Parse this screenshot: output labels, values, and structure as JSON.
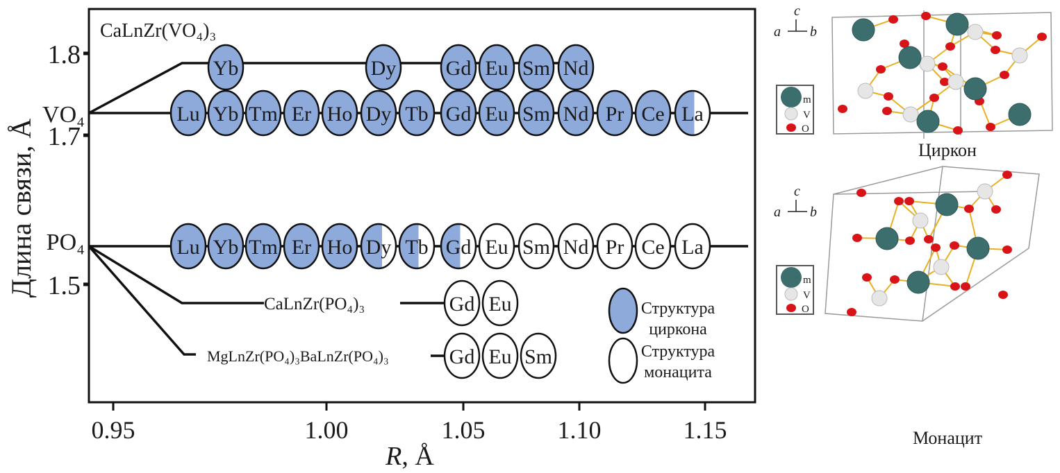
{
  "figure": {
    "y_axis_label": "Длина связи, Å",
    "x_axis_label_var": "R",
    "x_axis_label_unit": ", Å",
    "x_ticks": [
      "0.95",
      "1.00",
      "1.05",
      "1.10",
      "1.15"
    ],
    "y_ticks": [
      "1.8",
      "1.7",
      "1.5"
    ],
    "group_labels": {
      "vo4": "VO₄",
      "po4": "PO₄"
    },
    "compound_labels": {
      "ca_vanadate": "CaLnZr(VO₄)₃",
      "ca_phosphate": "CaLnZr(PO₄)₃",
      "mg_ba_phosphate": "MgLnZr(PO₄)₃BaLnZr(PO₄)₃"
    },
    "rows": [
      {
        "id": "ca_vanadate",
        "elements": [
          {
            "symbol": "Yb",
            "zircon_fraction": 1
          },
          {
            "symbol": "Dy",
            "zircon_fraction": 1
          },
          {
            "symbol": "Gd",
            "zircon_fraction": 1
          },
          {
            "symbol": "Eu",
            "zircon_fraction": 1
          },
          {
            "symbol": "Sm",
            "zircon_fraction": 1
          },
          {
            "symbol": "Nd",
            "zircon_fraction": 1
          }
        ]
      },
      {
        "id": "vo4",
        "elements": [
          {
            "symbol": "Lu",
            "zircon_fraction": 1
          },
          {
            "symbol": "Yb",
            "zircon_fraction": 1
          },
          {
            "symbol": "Tm",
            "zircon_fraction": 1
          },
          {
            "symbol": "Er",
            "zircon_fraction": 1
          },
          {
            "symbol": "Ho",
            "zircon_fraction": 1
          },
          {
            "symbol": "Dy",
            "zircon_fraction": 1
          },
          {
            "symbol": "Tb",
            "zircon_fraction": 1
          },
          {
            "symbol": "Gd",
            "zircon_fraction": 1
          },
          {
            "symbol": "Eu",
            "zircon_fraction": 1
          },
          {
            "symbol": "Sm",
            "zircon_fraction": 1
          },
          {
            "symbol": "Nd",
            "zircon_fraction": 1
          },
          {
            "symbol": "Pr",
            "zircon_fraction": 1
          },
          {
            "symbol": "Ce",
            "zircon_fraction": 1
          },
          {
            "symbol": "La",
            "zircon_fraction": 0.55
          }
        ]
      },
      {
        "id": "po4",
        "elements": [
          {
            "symbol": "Lu",
            "zircon_fraction": 1
          },
          {
            "symbol": "Yb",
            "zircon_fraction": 1
          },
          {
            "symbol": "Tm",
            "zircon_fraction": 1
          },
          {
            "symbol": "Er",
            "zircon_fraction": 1
          },
          {
            "symbol": "Ho",
            "zircon_fraction": 1
          },
          {
            "symbol": "Dy",
            "zircon_fraction": 0.6
          },
          {
            "symbol": "Tb",
            "zircon_fraction": 0.55
          },
          {
            "symbol": "Gd",
            "zircon_fraction": 0.55
          },
          {
            "symbol": "Eu",
            "zircon_fraction": 0
          },
          {
            "symbol": "Sm",
            "zircon_fraction": 0
          },
          {
            "symbol": "Nd",
            "zircon_fraction": 0
          },
          {
            "symbol": "Pr",
            "zircon_fraction": 0
          },
          {
            "symbol": "Ce",
            "zircon_fraction": 0
          },
          {
            "symbol": "La",
            "zircon_fraction": 0
          }
        ]
      },
      {
        "id": "ca_phosphate",
        "elements": [
          {
            "symbol": "Gd",
            "zircon_fraction": 0
          },
          {
            "symbol": "Eu",
            "zircon_fraction": 0
          }
        ]
      },
      {
        "id": "mg_ba_phosphate",
        "elements": [
          {
            "symbol": "Gd",
            "zircon_fraction": 0
          },
          {
            "symbol": "Eu",
            "zircon_fraction": 0
          },
          {
            "symbol": "Sm",
            "zircon_fraction": 0
          }
        ]
      }
    ],
    "legend": {
      "zircon": {
        "line1": "Структура",
        "line2": "циркона"
      },
      "monazite": {
        "line1": "Структура",
        "line2": "монацита"
      }
    },
    "colors": {
      "zircon": "#8eaadb",
      "monazite": "#ffffff",
      "m_atom": "#3d6e6e",
      "v_atom": "#e6e6e6",
      "o_atom": "#d81418",
      "bond": "#e8b020"
    }
  },
  "structures": {
    "zircon_caption": "Циркон",
    "monazite_caption": "Монацит",
    "axes": {
      "a": "a",
      "b": "b",
      "c": "c"
    },
    "atom_legend": {
      "m": "m",
      "v": "V",
      "o": "O"
    }
  }
}
